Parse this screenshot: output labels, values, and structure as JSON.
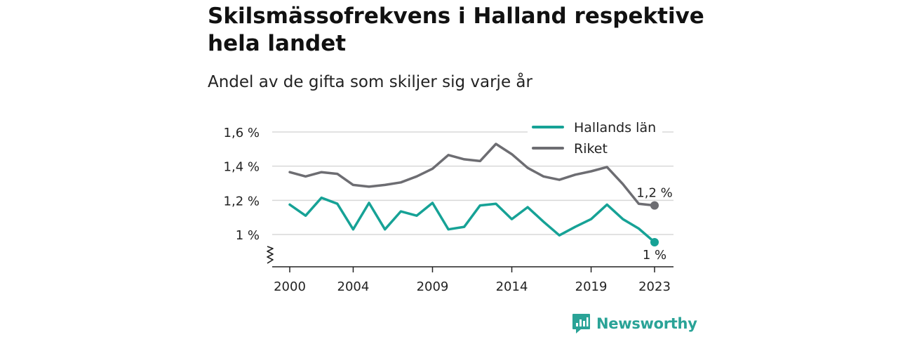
{
  "chart_data": {
    "type": "line",
    "title": "Skilsmässofrekvens i Halland respektive hela landet",
    "subtitle": "Andel av de gifta som skiljer sig varje år",
    "xlabel": "",
    "ylabel": "",
    "x": [
      2000,
      2001,
      2002,
      2003,
      2004,
      2005,
      2006,
      2007,
      2008,
      2009,
      2010,
      2011,
      2012,
      2013,
      2014,
      2015,
      2016,
      2017,
      2018,
      2019,
      2020,
      2021,
      2022,
      2023
    ],
    "x_ticks": [
      "2000",
      "2004",
      "2009",
      "2014",
      "2019",
      "2023"
    ],
    "y_ticks": [
      "1 %",
      "1,2 %",
      "1,4 %",
      "1,6 %"
    ],
    "ylim": [
      0.81,
      1.6
    ],
    "y_axis_broken": true,
    "grid": true,
    "legend_position": "top-right",
    "series": [
      {
        "name": "Hallands län",
        "color": "#16a296",
        "values": [
          1.175,
          1.11,
          1.215,
          1.18,
          1.03,
          1.185,
          1.03,
          1.135,
          1.11,
          1.185,
          1.03,
          1.045,
          1.17,
          1.18,
          1.09,
          1.16,
          1.075,
          0.995,
          1.045,
          1.09,
          1.175,
          1.09,
          1.035,
          0.955
        ],
        "end_label": "1 %"
      },
      {
        "name": "Riket",
        "color": "#6d6d72",
        "values": [
          1.365,
          1.34,
          1.365,
          1.355,
          1.29,
          1.28,
          1.29,
          1.305,
          1.34,
          1.385,
          1.465,
          1.44,
          1.43,
          1.53,
          1.47,
          1.39,
          1.34,
          1.32,
          1.35,
          1.37,
          1.395,
          1.295,
          1.18,
          1.17
        ],
        "end_label": "1,2 %"
      }
    ]
  },
  "brand": {
    "name": "Newsworthy",
    "logo_icon": "newsworthy-logo-icon",
    "color": "#2aa397"
  }
}
